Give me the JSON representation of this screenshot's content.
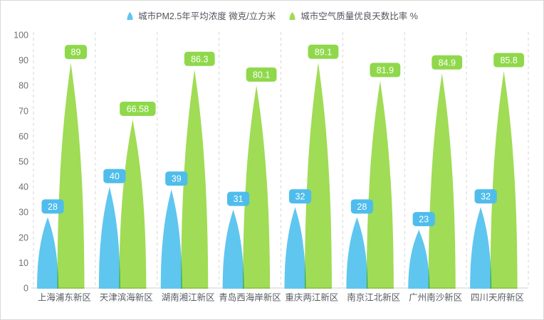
{
  "page": {
    "background": "#ffffff",
    "border_color": "#d9d9d9"
  },
  "chart_data": {
    "type": "bar",
    "bar_shape": "petal-column",
    "title": "",
    "xlabel": "",
    "ylabel": "",
    "categories": [
      "上海浦东新区",
      "天津滨海新区",
      "湖南湘江新区",
      "青岛西海岸新区",
      "重庆两江新区",
      "南京江北新区",
      "广州南沙新区",
      "四川天府新区"
    ],
    "series": [
      {
        "name": "城市PM2.5年平均浓度 微克/立方米",
        "color": "#5FC6EF",
        "badge_color": "#4FBDEB",
        "values": [
          28,
          40,
          39,
          31,
          32,
          28,
          23,
          32
        ]
      },
      {
        "name": "城市空气质量优良天数比率 %",
        "color": "#A0DC55",
        "badge_color": "#8FD84B",
        "values": [
          89,
          66.58,
          86.3,
          80.1,
          89.1,
          81.9,
          84.9,
          85.8
        ]
      }
    ],
    "ylim": [
      0,
      100
    ],
    "yticks": [
      0,
      10,
      20,
      30,
      40,
      50,
      60,
      70,
      80,
      90,
      100
    ],
    "grid": "vertical-dashed",
    "legend_position": "top",
    "data_labels": "rounded-badges"
  },
  "axis_style": {
    "grid_color": "#d6d6d6",
    "axis_color": "#cfcfcf",
    "tick_label_color": "#707070",
    "category_label_color": "#565b61"
  }
}
